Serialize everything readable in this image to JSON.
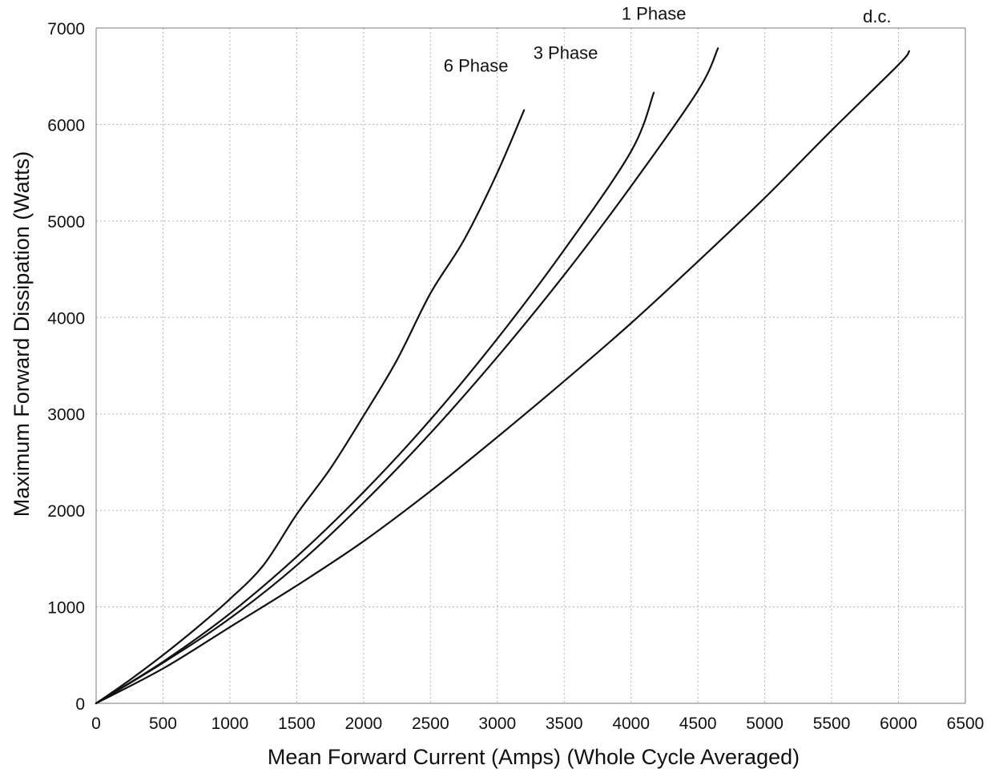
{
  "chart_data": {
    "type": "line",
    "title": "",
    "xlabel": "Mean Forward Current (Amps) (Whole Cycle Averaged)",
    "ylabel": "Maximum Forward Dissipation (Watts)",
    "xlim": [
      0,
      6500
    ],
    "ylim": [
      0,
      7000
    ],
    "xticks": [
      "0",
      "500",
      "1000",
      "1500",
      "2000",
      "2500",
      "3000",
      "3500",
      "4000",
      "4500",
      "5000",
      "5500",
      "6000",
      "6500"
    ],
    "yticks": [
      "0",
      "1000",
      "2000",
      "3000",
      "4000",
      "5000",
      "6000",
      "7000"
    ],
    "grid": true,
    "legend": "inline labels at curve ends",
    "series": [
      {
        "name": "6 Phase",
        "x": [
          0,
          250,
          500,
          750,
          1000,
          1250,
          1500,
          1750,
          2000,
          2250,
          2500,
          2750,
          3000,
          3200
        ],
        "y": [
          0,
          240,
          500,
          780,
          1080,
          1430,
          1960,
          2430,
          2980,
          3560,
          4250,
          4800,
          5500,
          6150
        ]
      },
      {
        "name": "3 Phase",
        "x": [
          0,
          500,
          1000,
          1500,
          2000,
          2500,
          3000,
          3500,
          4000,
          4170
        ],
        "y": [
          0,
          430,
          930,
          1520,
          2190,
          2940,
          3780,
          4700,
          5720,
          6330
        ]
      },
      {
        "name": "1 Phase",
        "x": [
          0,
          500,
          1000,
          1500,
          2000,
          2500,
          3000,
          3500,
          4000,
          4500,
          4650
        ],
        "y": [
          0,
          420,
          880,
          1430,
          2080,
          2800,
          3590,
          4440,
          5360,
          6350,
          6790
        ]
      },
      {
        "name": "d.c.",
        "x": [
          0,
          500,
          1000,
          1500,
          2000,
          2500,
          3000,
          3500,
          4000,
          4500,
          5000,
          5500,
          6000,
          6080
        ],
        "y": [
          0,
          360,
          790,
          1220,
          1680,
          2200,
          2760,
          3340,
          3940,
          4580,
          5240,
          5940,
          6620,
          6760
        ]
      }
    ]
  }
}
